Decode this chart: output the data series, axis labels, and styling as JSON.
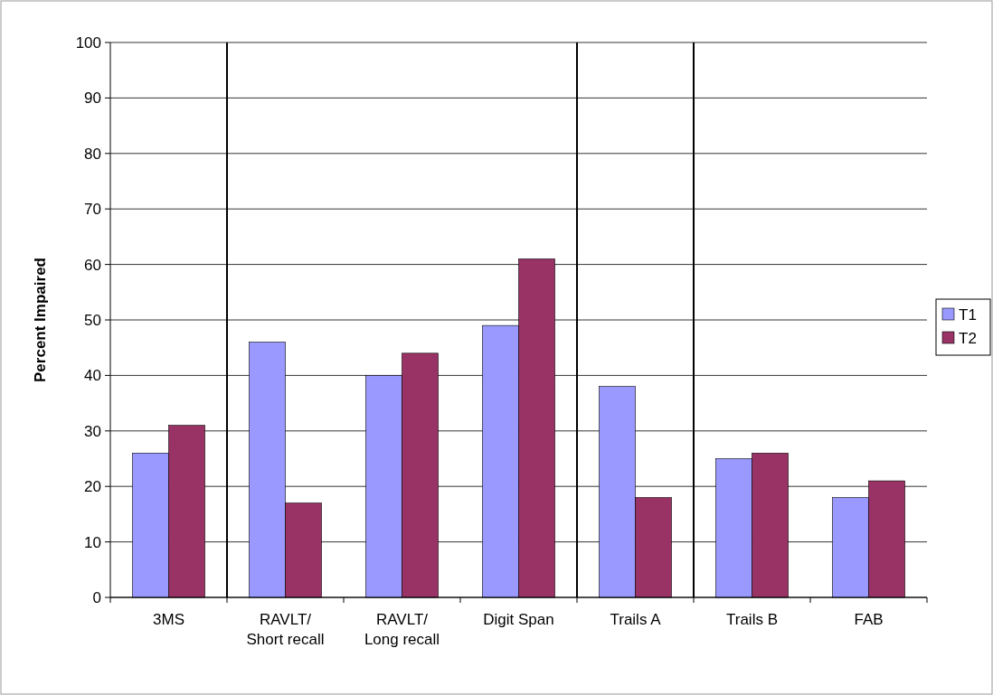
{
  "chart_data": {
    "type": "bar",
    "ylabel": "Percent Impaired",
    "categories": [
      "3MS",
      "RAVLT/ Short recall",
      "RAVLT/ Long recall",
      "Digit Span",
      "Trails A",
      "Trails B",
      "FAB"
    ],
    "series": [
      {
        "name": "T1",
        "color": "#9999ff",
        "values": [
          26,
          46,
          40,
          49,
          38,
          25,
          18
        ]
      },
      {
        "name": "T2",
        "color": "#993366",
        "values": [
          31,
          17,
          44,
          61,
          18,
          26,
          21
        ]
      }
    ],
    "ylim": [
      0,
      100
    ],
    "yticks": [
      0,
      10,
      20,
      30,
      40,
      50,
      60,
      70,
      80,
      90,
      100
    ],
    "grid": "y",
    "legend": "right"
  }
}
